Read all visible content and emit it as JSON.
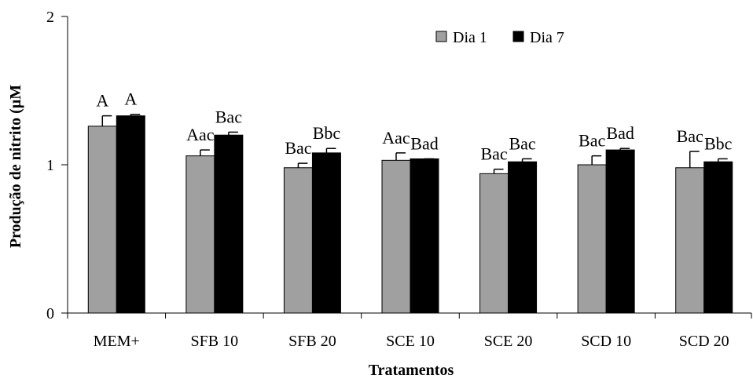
{
  "chart_data": {
    "type": "bar",
    "title": "",
    "xlabel": "Tratamentos",
    "ylabel": "Produção de nitrito (µM",
    "ylim": [
      0,
      2
    ],
    "yticks": [
      "0",
      "1",
      "2"
    ],
    "ytick_values": [
      0,
      1,
      2
    ],
    "categories": [
      "MEM+",
      "SFB 10",
      "SFB 20",
      "SCE 10",
      "SCE 20",
      "SCD 10",
      "SCD 20"
    ],
    "legend_position": "top-right",
    "grid": false,
    "series": [
      {
        "name": "Dia 1",
        "color": "#a0a0a0",
        "values": [
          1.26,
          1.06,
          0.98,
          1.03,
          0.94,
          1.0,
          0.98
        ],
        "errors": [
          0.07,
          0.04,
          0.03,
          0.05,
          0.03,
          0.06,
          0.11
        ],
        "labels": [
          "A",
          "Aac",
          "Bac",
          "Aac",
          "Bac",
          "Bac",
          "Bac"
        ]
      },
      {
        "name": "Dia 7",
        "color": "#000000",
        "values": [
          1.33,
          1.2,
          1.08,
          1.04,
          1.02,
          1.1,
          1.02
        ],
        "errors": [
          0.01,
          0.02,
          0.03,
          0.0,
          0.02,
          0.01,
          0.02
        ],
        "labels": [
          "A",
          "Bac",
          "Bbc",
          "Bad",
          "Bac",
          "Bad",
          "Bbc"
        ]
      }
    ]
  }
}
